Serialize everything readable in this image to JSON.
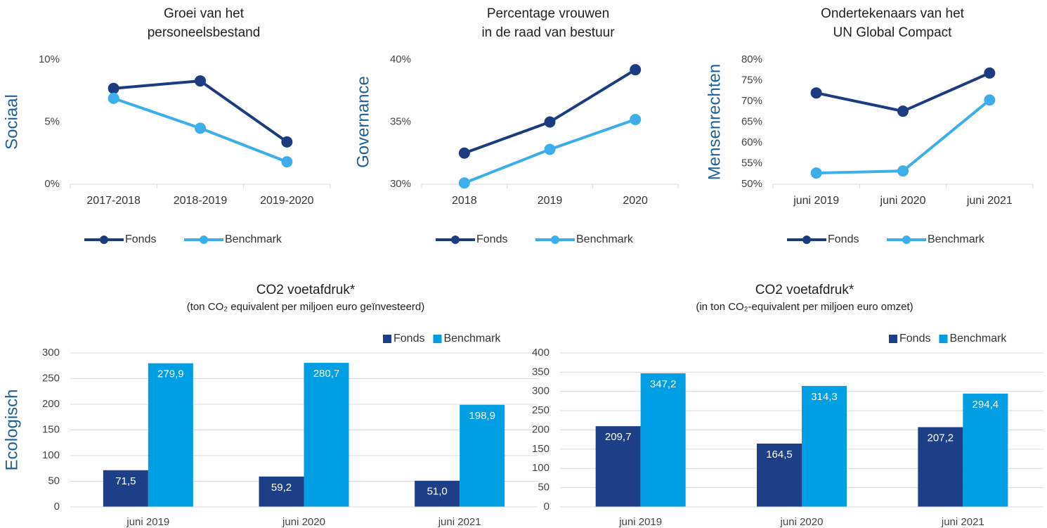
{
  "chart_data": [
    {
      "type": "line",
      "title": [
        "Groei van het",
        "personeelsbestand"
      ],
      "ylabel": "Sociaal",
      "categories": [
        "2017-2018",
        "2018-2019",
        "2019-2020"
      ],
      "series": [
        {
          "name": "Fonds",
          "color": "#1d3c80",
          "values": [
            7.7,
            8.3,
            3.4
          ]
        },
        {
          "name": "Benchmark",
          "color": "#3daee9",
          "values": [
            6.9,
            4.5,
            1.8
          ]
        }
      ],
      "ylim": [
        0,
        10
      ],
      "yticks": [
        {
          "value": 0,
          "label": "0%"
        },
        {
          "value": 5,
          "label": "5%"
        },
        {
          "value": 10,
          "label": "10%"
        }
      ],
      "legend": "bottom"
    },
    {
      "type": "line",
      "title": [
        "Percentage vrouwen",
        "in de raad van bestuur"
      ],
      "ylabel": "Governance",
      "categories": [
        "2018",
        "2019",
        "2020"
      ],
      "series": [
        {
          "name": "Fonds",
          "color": "#1d3c80",
          "values": [
            32.5,
            35.0,
            39.2
          ]
        },
        {
          "name": "Benchmark",
          "color": "#3daee9",
          "values": [
            30.1,
            32.8,
            35.2
          ]
        }
      ],
      "ylim": [
        30,
        40
      ],
      "yticks": [
        {
          "value": 30,
          "label": "30%"
        },
        {
          "value": 35,
          "label": "35%"
        },
        {
          "value": 40,
          "label": "40%"
        }
      ],
      "legend": "bottom"
    },
    {
      "type": "line",
      "title": [
        "Ondertekenaars van het",
        "UN Global Compact"
      ],
      "ylabel": "Mensenrechten",
      "categories": [
        "juni 2019",
        "juni 2020",
        "juni 2021"
      ],
      "series": [
        {
          "name": "Fonds",
          "color": "#1d3c80",
          "values": [
            72.0,
            67.6,
            76.8
          ]
        },
        {
          "name": "Benchmark",
          "color": "#3daee9",
          "values": [
            52.7,
            53.2,
            70.3
          ]
        }
      ],
      "ylim": [
        50,
        80
      ],
      "yticks": [
        {
          "value": 50,
          "label": "50%"
        },
        {
          "value": 55,
          "label": "55%"
        },
        {
          "value": 60,
          "label": "60%"
        },
        {
          "value": 65,
          "label": "65%"
        },
        {
          "value": 70,
          "label": "70%"
        },
        {
          "value": 75,
          "label": "75%"
        },
        {
          "value": 80,
          "label": "80%"
        }
      ],
      "legend": "bottom"
    },
    {
      "type": "bar",
      "title": [
        "CO2 voetafdruk*"
      ],
      "subtitle": "(ton CO₂ equivalent per miljoen euro geïnvesteerd)",
      "ylabel": "Ecologisch",
      "categories": [
        "juni 2019",
        "juni 2020",
        "juni 2021"
      ],
      "series": [
        {
          "name": "Fonds",
          "color": "#1c3f87",
          "values": [
            71.5,
            59.2,
            51.0
          ],
          "value_labels": [
            "71,5",
            "59,2",
            "51,0"
          ]
        },
        {
          "name": "Benchmark",
          "color": "#009fe3",
          "values": [
            279.9,
            280.7,
            198.9
          ],
          "value_labels": [
            "279,9",
            "280,7",
            "198,9"
          ]
        }
      ],
      "ylim": [
        0,
        300
      ],
      "yticks": [
        0,
        50,
        100,
        150,
        200,
        250,
        300
      ],
      "grid": true,
      "legend": "top-right"
    },
    {
      "type": "bar",
      "title": [
        "CO2 voetafdruk*"
      ],
      "subtitle": "(in ton CO₂-equivalent per miljoen euro omzet)",
      "categories": [
        "juni 2019",
        "juni 2020",
        "juni 2021"
      ],
      "series": [
        {
          "name": "Fonds",
          "color": "#1c3f87",
          "values": [
            209.7,
            164.5,
            207.2
          ],
          "value_labels": [
            "209,7",
            "164,5",
            "207,2"
          ]
        },
        {
          "name": "Benchmark",
          "color": "#009fe3",
          "values": [
            347.2,
            314.3,
            294.4
          ],
          "value_labels": [
            "347,2",
            "314,3",
            "294,4"
          ]
        }
      ],
      "ylim": [
        0,
        400
      ],
      "yticks": [
        0,
        50,
        100,
        150,
        200,
        250,
        300,
        350,
        400
      ],
      "grid": true,
      "legend": "top-right"
    }
  ]
}
